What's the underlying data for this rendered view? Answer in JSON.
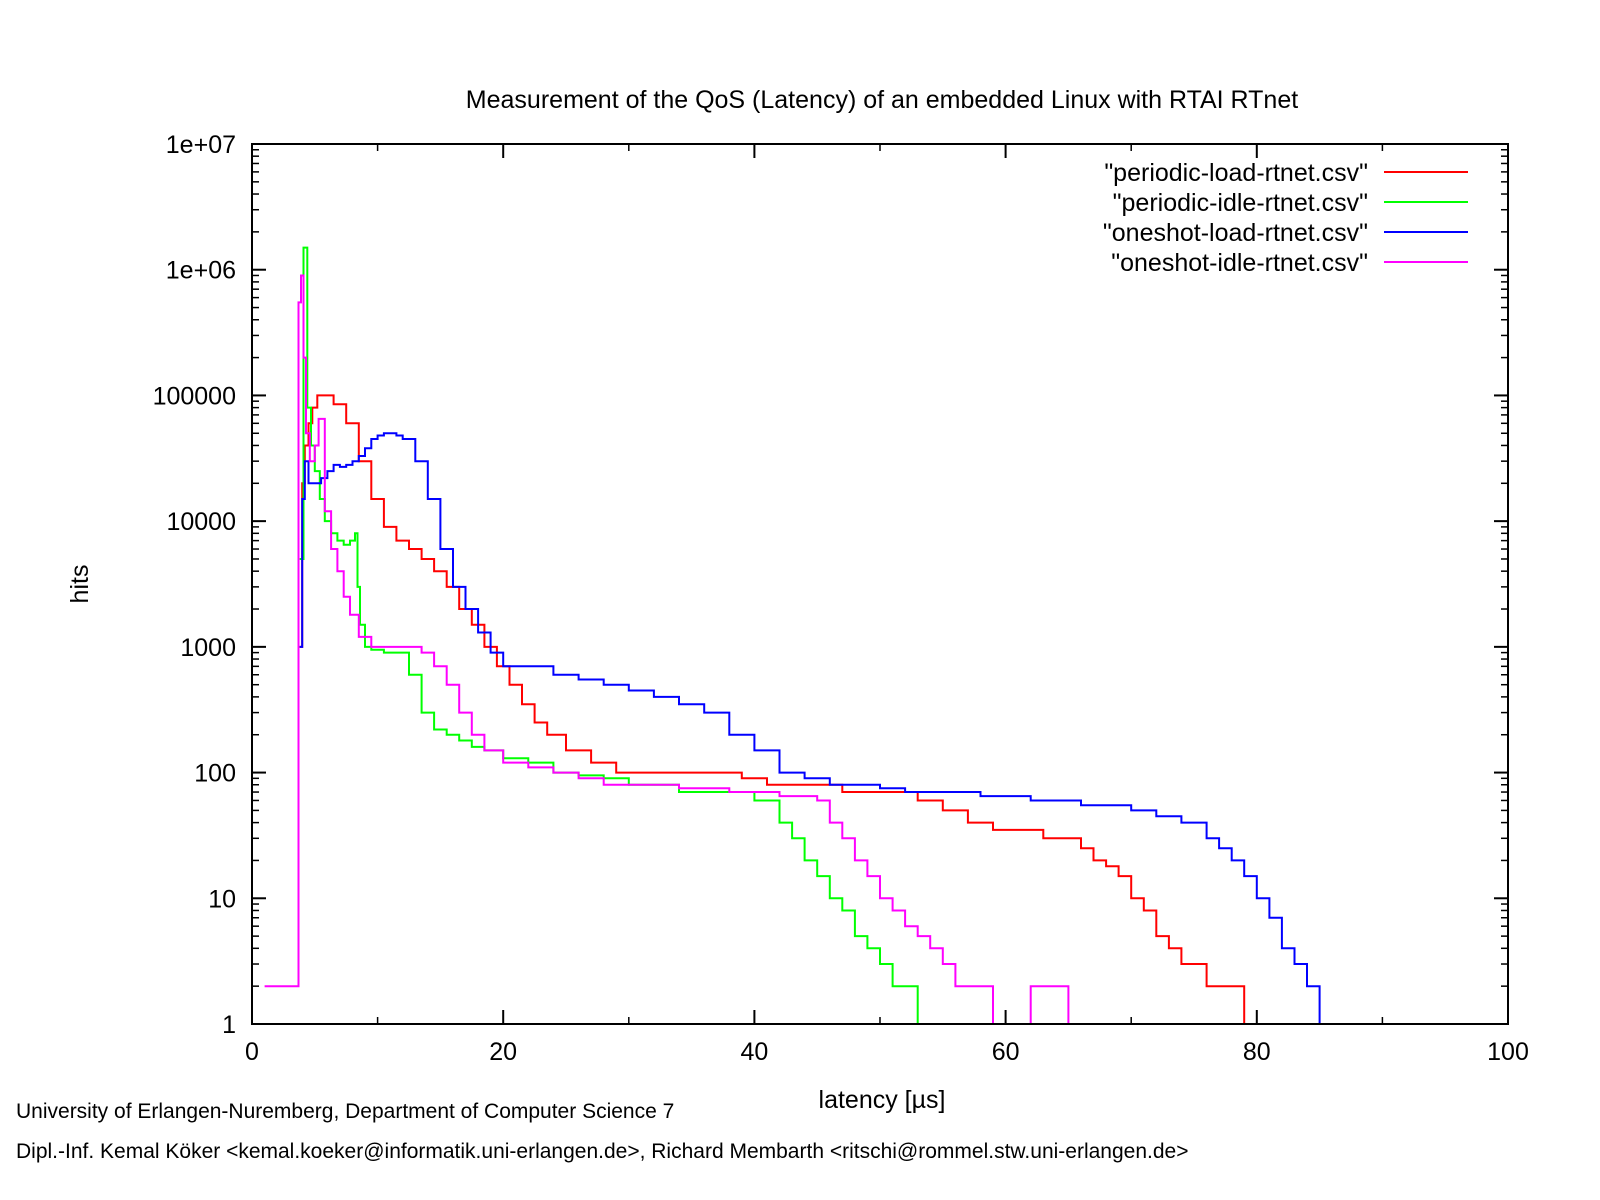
{
  "chart_data": {
    "type": "line",
    "title": "Measurement of the QoS (Latency) of an embedded Linux with RTAI  RTnet",
    "xlabel": "latency [µs]",
    "ylabel": "hits",
    "xlim": [
      0,
      100
    ],
    "ylim": [
      1,
      10000000
    ],
    "yscale": "log",
    "x_ticks": [
      "0",
      "20",
      "40",
      "60",
      "80",
      "100"
    ],
    "y_ticks": [
      "1",
      "10",
      "100",
      "1000",
      "10000",
      "100000",
      "1e+06",
      "1e+07"
    ],
    "legend_position": "top-right",
    "grid": false,
    "series": [
      {
        "name": "\"periodic-load-rtnet.csv\"",
        "color": "#ff0000",
        "x": [
          3.8,
          4.0,
          4.2,
          4.5,
          4.8,
          5.2,
          5.8,
          6.5,
          7.5,
          8.5,
          9.5,
          10.5,
          11.5,
          12.5,
          13.5,
          14.5,
          15.5,
          16.5,
          17.5,
          18.5,
          19.5,
          20.5,
          21.5,
          22.5,
          23.5,
          25,
          27,
          29,
          31,
          33,
          35,
          37,
          39,
          41,
          43,
          45,
          47,
          49,
          51,
          53,
          55,
          57,
          59,
          61,
          63,
          65,
          66,
          67,
          68,
          69,
          70,
          71,
          72,
          73,
          74,
          75,
          76,
          77,
          78,
          79
        ],
        "y": [
          1000,
          20000,
          40000,
          60000,
          80000,
          100000,
          100000,
          85000,
          60000,
          30000,
          15000,
          9000,
          7000,
          6000,
          5000,
          4000,
          3000,
          2000,
          1500,
          1000,
          700,
          500,
          350,
          250,
          200,
          150,
          120,
          100,
          100,
          100,
          100,
          100,
          90,
          80,
          80,
          80,
          70,
          70,
          70,
          60,
          50,
          40,
          35,
          35,
          30,
          30,
          25,
          20,
          18,
          15,
          10,
          8,
          5,
          4,
          3,
          3,
          2,
          2,
          2,
          1
        ]
      },
      {
        "name": "\"periodic-idle-rtnet.csv\"",
        "color": "#00ff00",
        "x": [
          3.8,
          4.1,
          4.4,
          4.7,
          5.0,
          5.4,
          5.8,
          6.3,
          6.8,
          7.3,
          7.8,
          8.2,
          8.4,
          8.6,
          9.0,
          9.5,
          10.5,
          11.5,
          12.5,
          13.5,
          14.5,
          15.5,
          16.5,
          17.5,
          18.5,
          20,
          22,
          24,
          26,
          28,
          30,
          32,
          34,
          36,
          38,
          40,
          42,
          43,
          44,
          45,
          46,
          47,
          48,
          49,
          50,
          51,
          52,
          53,
          54,
          55
        ],
        "y": [
          5000,
          1500000,
          80000,
          40000,
          25000,
          15000,
          10000,
          8000,
          7000,
          6500,
          7000,
          8000,
          3000,
          1500,
          1000,
          950,
          900,
          900,
          600,
          300,
          220,
          200,
          180,
          160,
          150,
          130,
          120,
          100,
          95,
          90,
          80,
          80,
          70,
          70,
          70,
          60,
          40,
          30,
          20,
          15,
          10,
          8,
          5,
          4,
          3,
          2,
          2,
          1,
          1,
          1
        ]
      },
      {
        "name": "\"oneshot-load-rtnet.csv\"",
        "color": "#0000ff",
        "x": [
          3.8,
          4.0,
          4.2,
          4.5,
          5.0,
          5.5,
          6.0,
          6.5,
          7.0,
          7.5,
          8.0,
          8.5,
          9.0,
          9.5,
          10.0,
          10.5,
          11.0,
          11.5,
          12.0,
          13.0,
          14.0,
          15.0,
          16.0,
          17.0,
          18.0,
          19.0,
          20,
          22,
          24,
          26,
          28,
          30,
          32,
          34,
          36,
          38,
          40,
          42,
          44,
          46,
          48,
          50,
          52,
          54,
          56,
          58,
          60,
          62,
          64,
          66,
          68,
          70,
          72,
          74,
          76,
          77,
          78,
          79,
          80,
          81,
          82,
          83,
          84,
          85
        ],
        "y": [
          1000,
          15000,
          30000,
          20000,
          20000,
          22000,
          25000,
          28000,
          27000,
          28000,
          30000,
          33000,
          38000,
          45000,
          48000,
          50000,
          50000,
          48000,
          45000,
          30000,
          15000,
          6000,
          3000,
          2000,
          1300,
          900,
          700,
          700,
          600,
          550,
          500,
          450,
          400,
          350,
          300,
          200,
          150,
          100,
          90,
          80,
          80,
          75,
          70,
          70,
          70,
          65,
          65,
          60,
          60,
          55,
          55,
          50,
          45,
          40,
          30,
          25,
          20,
          15,
          10,
          7,
          4,
          3,
          2,
          1
        ]
      },
      {
        "name": "\"oneshot-idle-rtnet.csv\"",
        "color": "#ff00ff",
        "x": [
          1.0,
          1.5,
          2.0,
          3.7,
          3.9,
          4.1,
          4.3,
          4.6,
          5.0,
          5.3,
          5.8,
          6.3,
          6.8,
          7.3,
          7.8,
          8.5,
          9.5,
          10.5,
          11.5,
          12.5,
          13.5,
          14.5,
          15.5,
          16.5,
          17.5,
          18.5,
          20,
          22,
          24,
          26,
          28,
          30,
          32,
          34,
          36,
          38,
          40,
          42,
          44,
          45,
          46,
          47,
          48,
          49,
          50,
          51,
          52,
          53,
          54,
          55,
          56,
          57,
          58,
          59,
          60,
          62,
          64,
          65
        ],
        "y": [
          2,
          2,
          2,
          550000,
          900000,
          200000,
          50000,
          30000,
          40000,
          65000,
          12000,
          6000,
          4000,
          2500,
          1800,
          1200,
          1000,
          1000,
          1000,
          1000,
          900,
          700,
          500,
          300,
          200,
          150,
          120,
          110,
          100,
          90,
          80,
          80,
          80,
          75,
          75,
          70,
          70,
          65,
          65,
          60,
          40,
          30,
          20,
          15,
          10,
          8,
          6,
          5,
          4,
          3,
          2,
          2,
          2,
          1,
          1,
          2,
          2,
          1
        ]
      }
    ]
  },
  "footer": {
    "line1": "University of Erlangen-Nuremberg, Department of Computer Science 7",
    "line2": "Dipl.-Inf. Kemal Köker <kemal.koeker@informatik.uni-erlangen.de>, Richard Membarth <ritschi@rommel.stw.uni-erlangen.de>"
  }
}
